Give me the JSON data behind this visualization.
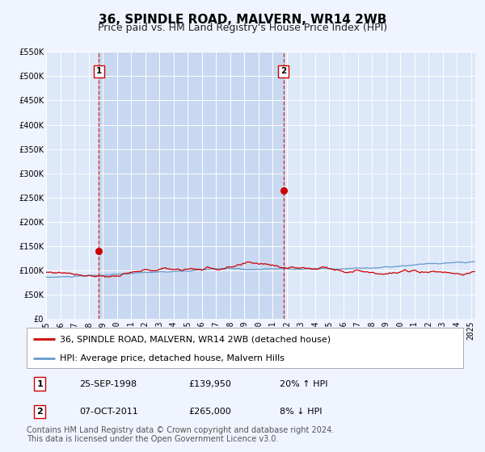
{
  "title": "36, SPINDLE ROAD, MALVERN, WR14 2WB",
  "subtitle": "Price paid vs. HM Land Registry's House Price Index (HPI)",
  "ylim": [
    0,
    550000
  ],
  "xlim_start": 1995.0,
  "xlim_end": 2025.3,
  "yticks": [
    0,
    50000,
    100000,
    150000,
    200000,
    250000,
    300000,
    350000,
    400000,
    450000,
    500000,
    550000
  ],
  "ytick_labels": [
    "£0",
    "£50K",
    "£100K",
    "£150K",
    "£200K",
    "£250K",
    "£300K",
    "£350K",
    "£400K",
    "£450K",
    "£500K",
    "£550K"
  ],
  "xticks": [
    1995,
    1996,
    1997,
    1998,
    1999,
    2000,
    2001,
    2002,
    2003,
    2004,
    2005,
    2006,
    2007,
    2008,
    2009,
    2010,
    2011,
    2012,
    2013,
    2014,
    2015,
    2016,
    2017,
    2018,
    2019,
    2020,
    2021,
    2022,
    2023,
    2024,
    2025
  ],
  "background_color": "#f0f4ff",
  "plot_bg_color": "#dde8f8",
  "shade_color": "#c8d8f0",
  "grid_color": "#ffffff",
  "red_line_color": "#cc0000",
  "blue_line_color": "#6699cc",
  "marker1_x": 1998.73,
  "marker1_y": 139950,
  "marker2_x": 2011.77,
  "marker2_y": 265000,
  "vline1_x": 1998.73,
  "vline2_x": 2011.77,
  "vline_color": "#cc0000",
  "legend_label_red": "36, SPINDLE ROAD, MALVERN, WR14 2WB (detached house)",
  "legend_label_blue": "HPI: Average price, detached house, Malvern Hills",
  "annotation1_label": "1",
  "annotation2_label": "2",
  "ann1_date": "25-SEP-1998",
  "ann1_price": "£139,950",
  "ann1_hpi": "20% ↑ HPI",
  "ann2_date": "07-OCT-2011",
  "ann2_price": "£265,000",
  "ann2_hpi": "8% ↓ HPI",
  "footer_text": "Contains HM Land Registry data © Crown copyright and database right 2024.\nThis data is licensed under the Open Government Licence v3.0.",
  "title_fontsize": 11,
  "subtitle_fontsize": 9,
  "tick_fontsize": 7,
  "legend_fontsize": 8,
  "ann_fontsize": 8,
  "footer_fontsize": 7
}
